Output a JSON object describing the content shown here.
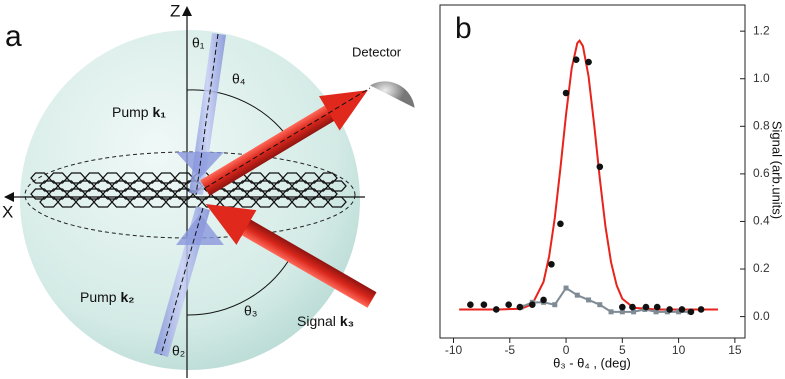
{
  "diagram": {
    "panel_label": "a",
    "z_axis": "Z",
    "x_axis": "X",
    "theta1": "θ₁",
    "theta2": "θ₂",
    "theta3": "θ₃",
    "theta4": "θ₄",
    "detector": "Detector",
    "pump1": {
      "text": "Pump",
      "symbol": "k₁"
    },
    "pump2": {
      "text": "Pump",
      "symbol": "k₂"
    },
    "signal": {
      "text": "Signal",
      "symbol": "k₃"
    }
  },
  "chart_data": {
    "type": "scatter",
    "panel_label": "b",
    "x_label": "θ₃ - θ₄ , (deg)",
    "y_label": "Signal (arb.units)",
    "xlim": [
      -11.2,
      15.9
    ],
    "xticks": [
      -10,
      -5,
      0,
      5,
      10,
      15
    ],
    "ylim": [
      -0.09,
      1.31
    ],
    "yticks": [
      {
        "value": 0,
        "label": "0.0"
      },
      {
        "value": 0.2,
        "label": "0.2"
      },
      {
        "value": 0.4,
        "label": "0.4"
      },
      {
        "value": 0.6,
        "label": "0.6"
      },
      {
        "value": 0.8,
        "label": "0.8"
      },
      {
        "value": 1.0,
        "label": "1.0"
      },
      {
        "value": 1.2,
        "label": "1.2"
      }
    ],
    "y_axis_side": "right",
    "series": [
      {
        "style": "markers",
        "color": "#111111",
        "x": [
          -8.5,
          -7.3,
          -6.2,
          -5.1,
          -4.1,
          -3.0,
          -2.0,
          -1.3,
          -0.5,
          0.0,
          0.9,
          2.0,
          3.0,
          5.0,
          5.9,
          7.1,
          8.1,
          9.2,
          10.3,
          11.1,
          12.0
        ],
        "values": [
          0.05,
          0.05,
          0.03,
          0.05,
          0.04,
          0.05,
          0.07,
          0.22,
          0.39,
          0.94,
          1.08,
          1.07,
          0.63,
          0.04,
          0.04,
          0.04,
          0.04,
          0.03,
          0.03,
          0.02,
          0.03
        ]
      },
      {
        "style": "line",
        "color": "#e8231b",
        "x": [
          -9.5,
          -6,
          -4,
          -3,
          -2,
          -1.5,
          -1,
          -0.5,
          0,
          0.5,
          1,
          1.2,
          1.5,
          2,
          2.5,
          3,
          3.5,
          4,
          4.5,
          5,
          6,
          8,
          10,
          13.5
        ],
        "values": [
          0.03,
          0.03,
          0.033,
          0.052,
          0.146,
          0.254,
          0.415,
          0.624,
          0.85,
          1.044,
          1.15,
          1.16,
          1.137,
          1.01,
          0.806,
          0.58,
          0.379,
          0.228,
          0.131,
          0.075,
          0.037,
          0.03,
          0.03,
          0.03
        ]
      },
      {
        "style": "line-markers",
        "color": "#7f8c95",
        "x": [
          -4,
          -3,
          -2,
          -1,
          0,
          1,
          2,
          3,
          4,
          5,
          6,
          7,
          8,
          9,
          10,
          11
        ],
        "values": [
          0.04,
          0.06,
          0.06,
          0.05,
          0.12,
          0.09,
          0.07,
          0.05,
          0.02,
          0.02,
          0.02,
          0.03,
          0.02,
          0.02,
          0.02,
          0.02
        ]
      }
    ]
  }
}
